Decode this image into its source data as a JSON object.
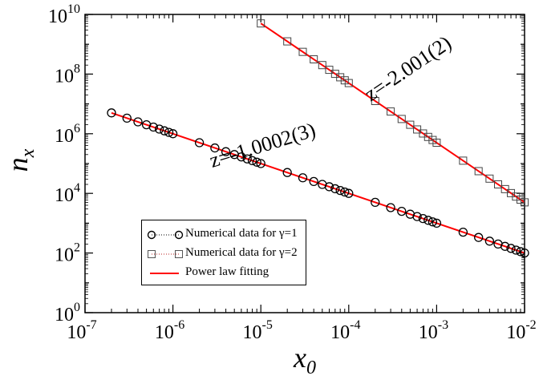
{
  "chart_data": {
    "type": "scatter",
    "xscale": "log",
    "yscale": "log",
    "xlim": [
      1e-07,
      0.01
    ],
    "ylim": [
      1,
      10000000000.0
    ],
    "xlabel_main": "x",
    "xlabel_sub": "0",
    "ylabel_main": "n",
    "ylabel_sub": "x",
    "x_ticks": [
      {
        "base": "10",
        "exp": "-7",
        "value": 1e-07
      },
      {
        "base": "10",
        "exp": "-6",
        "value": 1e-06
      },
      {
        "base": "10",
        "exp": "-5",
        "value": 1e-05
      },
      {
        "base": "10",
        "exp": "-4",
        "value": 0.0001
      },
      {
        "base": "10",
        "exp": "-3",
        "value": 0.001
      },
      {
        "base": "10",
        "exp": "-2",
        "value": 0.01
      }
    ],
    "y_ticks": [
      {
        "base": "10",
        "exp": "0",
        "value": 1
      },
      {
        "base": "10",
        "exp": "2",
        "value": 100.0
      },
      {
        "base": "10",
        "exp": "4",
        "value": 10000.0
      },
      {
        "base": "10",
        "exp": "6",
        "value": 1000000.0
      },
      {
        "base": "10",
        "exp": "8",
        "value": 100000000.0
      },
      {
        "base": "10",
        "exp": "10",
        "value": 10000000000.0
      }
    ],
    "series": [
      {
        "name": "Numerical data for γ=1",
        "marker": "circle",
        "color": "#000000",
        "x": [
          2e-07,
          3e-07,
          4e-07,
          5e-07,
          6e-07,
          7e-07,
          8e-07,
          9e-07,
          1e-06,
          2e-06,
          3e-06,
          4e-06,
          5e-06,
          6e-06,
          7e-06,
          8e-06,
          9e-06,
          1e-05,
          2e-05,
          3e-05,
          4e-05,
          5e-05,
          6e-05,
          7e-05,
          8e-05,
          9e-05,
          0.0001,
          0.0002,
          0.0003,
          0.0004,
          0.0005,
          0.0006,
          0.0007,
          0.0008,
          0.0009,
          0.001,
          0.002,
          0.003,
          0.004,
          0.005,
          0.006,
          0.007,
          0.008,
          0.009,
          0.01
        ],
        "y": [
          5000000.0,
          3330000.0,
          2500000.0,
          2000000.0,
          1670000.0,
          1430000.0,
          1250000.0,
          1110000.0,
          1000000.0,
          500000.0,
          333000.0,
          250000.0,
          200000.0,
          167000.0,
          143000.0,
          125000.0,
          111000.0,
          100000.0,
          50000.0,
          33300.0,
          25000.0,
          20000.0,
          16700.0,
          14300.0,
          12500.0,
          11100.0,
          10000.0,
          5000.0,
          3330.0,
          2500.0,
          2000.0,
          1670.0,
          1430.0,
          1250.0,
          1110.0,
          1000.0,
          500,
          333,
          250,
          200,
          167,
          143,
          125,
          111,
          100
        ]
      },
      {
        "name": "Numerical data for γ=2",
        "marker": "square",
        "color": "#000000",
        "x": [
          1e-05,
          2e-05,
          3e-05,
          4e-05,
          5e-05,
          6e-05,
          7e-05,
          8e-05,
          9e-05,
          0.0001,
          0.0002,
          0.0003,
          0.0004,
          0.0005,
          0.0006,
          0.0007,
          0.0008,
          0.0009,
          0.001,
          0.002,
          0.003,
          0.004,
          0.005,
          0.006,
          0.007,
          0.008,
          0.009,
          0.01
        ],
        "y": [
          5000000000.0,
          1250000000.0,
          556000000.0,
          312000000.0,
          200000000.0,
          139000000.0,
          102000000.0,
          78100000.0,
          61700000.0,
          50000000.0,
          12500000.0,
          5560000.0,
          3120000.0,
          2000000.0,
          1390000.0,
          1020000.0,
          781000.0,
          617000.0,
          500000.0,
          125000.0,
          55600.0,
          31200.0,
          20000.0,
          13900.0,
          10200.0,
          7810.0,
          6170.0,
          5000.0
        ]
      },
      {
        "name": "Power law fitting",
        "type": "line",
        "color": "#ff0000",
        "segments": [
          {
            "x": [
              2e-07,
              0.01
            ],
            "y": [
              5000000.0,
              100
            ]
          },
          {
            "x": [
              1e-05,
              0.01
            ],
            "y": [
              5000000000.0,
              5000.0
            ]
          }
        ]
      }
    ],
    "annotations": [
      {
        "text": "z=-1.0002(3)",
        "x": 1.1e-05,
        "y": 250000.0,
        "rotation": -17
      },
      {
        "text": "z=-2.001(2)",
        "x": 0.00052,
        "y": 100000000.0,
        "rotation": -34
      }
    ],
    "legend": "bottom-left"
  }
}
